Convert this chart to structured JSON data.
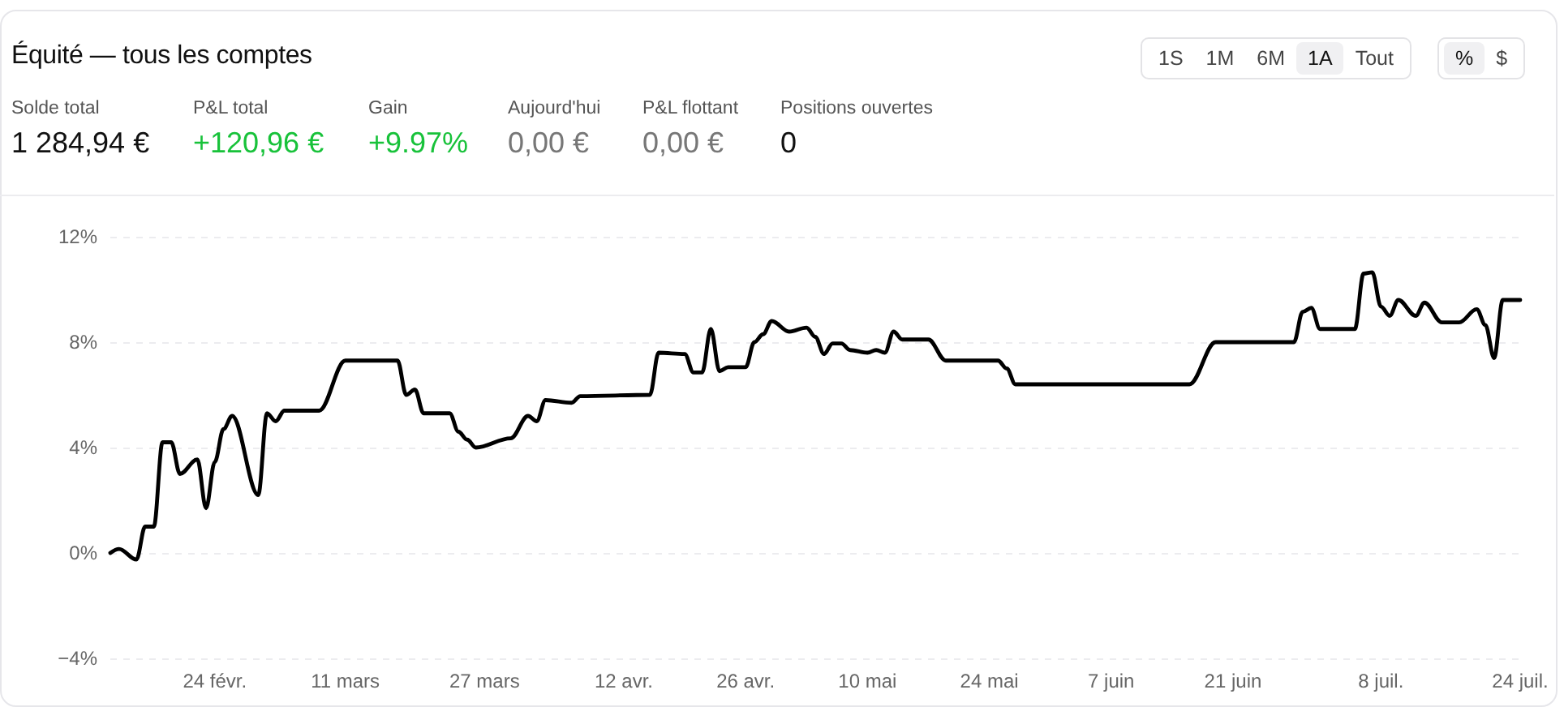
{
  "chart_data": {
    "type": "line",
    "title": "Équité — tous les comptes",
    "annotations": [
      "Solde total",
      "1 284,94 €",
      "P&L total",
      "+120,96 €",
      "Gain",
      "+9.97%",
      "Aujourd'hui",
      "0,00 €",
      "P&L flottant",
      "0,00 €",
      "Positions ouvertes",
      "0",
      "1S",
      "1M",
      "6M",
      "1A",
      "Tout",
      "%",
      "$"
    ],
    "x": [
      "--02-12",
      "--02-13",
      "--02-15",
      "--02-16",
      "--02-17",
      "--02-18",
      "--02-19",
      "--02-20",
      "--02-22",
      "--02-23",
      "--02-24",
      "--02-25",
      "--02-26",
      "--03-01",
      "--03-02",
      "--03-03",
      "--03-04",
      "--03-08",
      "--03-11",
      "--03-17",
      "--03-18",
      "--03-19",
      "--03-20",
      "--03-23",
      "--03-24",
      "--03-25",
      "--03-26",
      "--03-30",
      "--04-01",
      "--04-02",
      "--04-03",
      "--04-06",
      "--04-07",
      "--04-15",
      "--04-16",
      "--04-19",
      "--04-20",
      "--04-21",
      "--04-22",
      "--04-23",
      "--04-24",
      "--04-26",
      "--04-27",
      "--04-28",
      "--04-29",
      "--05-01",
      "--05-03",
      "--05-04",
      "--05-05",
      "--05-06",
      "--05-07",
      "--05-08",
      "--05-10",
      "--05-11",
      "--05-12",
      "--05-13",
      "--05-14",
      "--05-17",
      "--05-19",
      "--05-25",
      "--05-26",
      "--05-27",
      "--06-16",
      "--06-19",
      "--06-28",
      "--06-29",
      "--06-30",
      "--07-01",
      "--07-05",
      "--07-06",
      "--07-07",
      "--07-08",
      "--07-09",
      "--07-10",
      "--07-12",
      "--07-13",
      "--07-15",
      "--07-17",
      "--07-19",
      "--07-20",
      "--07-21",
      "--07-22",
      "--07-24"
    ],
    "series": [
      {
        "color": "#000000",
        "values": [
          0.0,
          0.15,
          -0.25,
          1.0,
          1.0,
          4.2,
          4.2,
          3.0,
          3.55,
          1.7,
          3.45,
          4.7,
          5.2,
          2.2,
          5.3,
          5.0,
          5.4,
          5.4,
          7.3,
          7.3,
          6.0,
          6.2,
          5.3,
          5.3,
          4.6,
          4.3,
          4.0,
          4.35,
          5.2,
          5.0,
          5.8,
          5.7,
          5.95,
          6.0,
          7.6,
          7.55,
          6.85,
          6.85,
          8.5,
          6.9,
          7.05,
          7.05,
          8.0,
          8.3,
          8.8,
          8.4,
          8.55,
          8.2,
          7.55,
          7.95,
          7.95,
          7.7,
          7.6,
          7.7,
          7.6,
          8.4,
          8.1,
          8.1,
          7.3,
          7.3,
          7.0,
          6.4,
          6.4,
          8.0,
          8.0,
          9.15,
          9.3,
          8.5,
          8.5,
          10.6,
          10.65,
          9.35,
          9.0,
          9.6,
          9.0,
          9.5,
          8.75,
          8.75,
          9.25,
          8.65,
          7.4,
          9.6,
          9.6
        ]
      }
    ],
    "xlim": [
      "--02-12",
      "--07-24"
    ],
    "xticks": [
      {
        "value": "--02-24",
        "label": "24 févr."
      },
      {
        "value": "--03-11",
        "label": "11 mars"
      },
      {
        "value": "--03-27",
        "label": "27 mars"
      },
      {
        "value": "--04-12",
        "label": "12 avr."
      },
      {
        "value": "--04-26",
        "label": "26 avr."
      },
      {
        "value": "--05-10",
        "label": "10 mai"
      },
      {
        "value": "--05-24",
        "label": "24 mai"
      },
      {
        "value": "--06-07",
        "label": "7 juin"
      },
      {
        "value": "--06-21",
        "label": "21 juin"
      },
      {
        "value": "--07-08",
        "label": "8 juil."
      },
      {
        "value": "--07-24",
        "label": "24 juil."
      }
    ],
    "ylim": [
      -4,
      12
    ],
    "yticks": [
      {
        "value": -4,
        "label": "−4%"
      },
      {
        "value": 0,
        "label": "0%"
      },
      {
        "value": 4,
        "label": "4%"
      },
      {
        "value": 8,
        "label": "8%"
      },
      {
        "value": 12,
        "label": "12%"
      }
    ],
    "grid": "y",
    "marker": "none",
    "line_style": "solid"
  }
}
